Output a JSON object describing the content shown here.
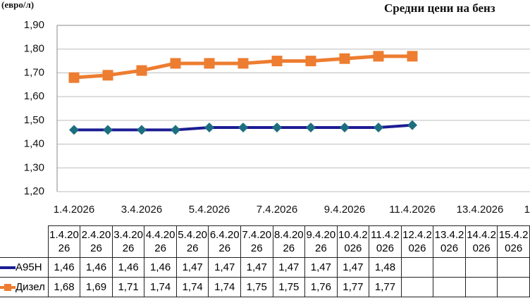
{
  "chart_data": {
    "type": "line",
    "title": "Средни цени на бенз",
    "y_label": "(евро/л)",
    "categories": [
      "1.4.2026",
      "2.4.2026",
      "3.4.2026",
      "4.4.2026",
      "5.4.2026",
      "6.4.2026",
      "7.4.2026",
      "8.4.2026",
      "9.4.2026",
      "10.4.2026",
      "11.4.2026",
      "12.4.2026",
      "13.4.2026",
      "14.4.2026",
      "15.4.2026"
    ],
    "series": [
      {
        "name": "A95H",
        "color": "#1c1c94",
        "marker_color": "#1d6f80",
        "marker": "diamond",
        "values": [
          1.46,
          1.46,
          1.46,
          1.46,
          1.47,
          1.47,
          1.47,
          1.47,
          1.47,
          1.47,
          1.48,
          null,
          null,
          null,
          null
        ],
        "value_labels": [
          "1,46",
          "1,46",
          "1,46",
          "1,46",
          "1,47",
          "1,47",
          "1,47",
          "1,47",
          "1,47",
          "1,47",
          "1,48",
          null,
          null,
          null,
          null
        ]
      },
      {
        "name": "Дизел",
        "color": "#ed7d31",
        "marker_color": "#ed7d31",
        "marker": "square",
        "values": [
          1.68,
          1.69,
          1.71,
          1.74,
          1.74,
          1.74,
          1.75,
          1.75,
          1.76,
          1.77,
          1.77,
          null,
          null,
          null,
          null
        ],
        "value_labels": [
          "1,68",
          "1,69",
          "1,71",
          "1,74",
          "1,74",
          "1,74",
          "1,75",
          "1,75",
          "1,76",
          "1,77",
          "1,77",
          null,
          null,
          null,
          null
        ]
      }
    ],
    "ylim": [
      1.2,
      1.9
    ],
    "yticks": [
      {
        "value": 1.2,
        "label": "1,20"
      },
      {
        "value": 1.3,
        "label": "1,30"
      },
      {
        "value": 1.4,
        "label": "1,40"
      },
      {
        "value": 1.5,
        "label": "1,50"
      },
      {
        "value": 1.6,
        "label": "1,60"
      },
      {
        "value": 1.7,
        "label": "1,70"
      },
      {
        "value": 1.8,
        "label": "1,80"
      },
      {
        "value": 1.9,
        "label": "1,90"
      }
    ],
    "grid": true
  }
}
